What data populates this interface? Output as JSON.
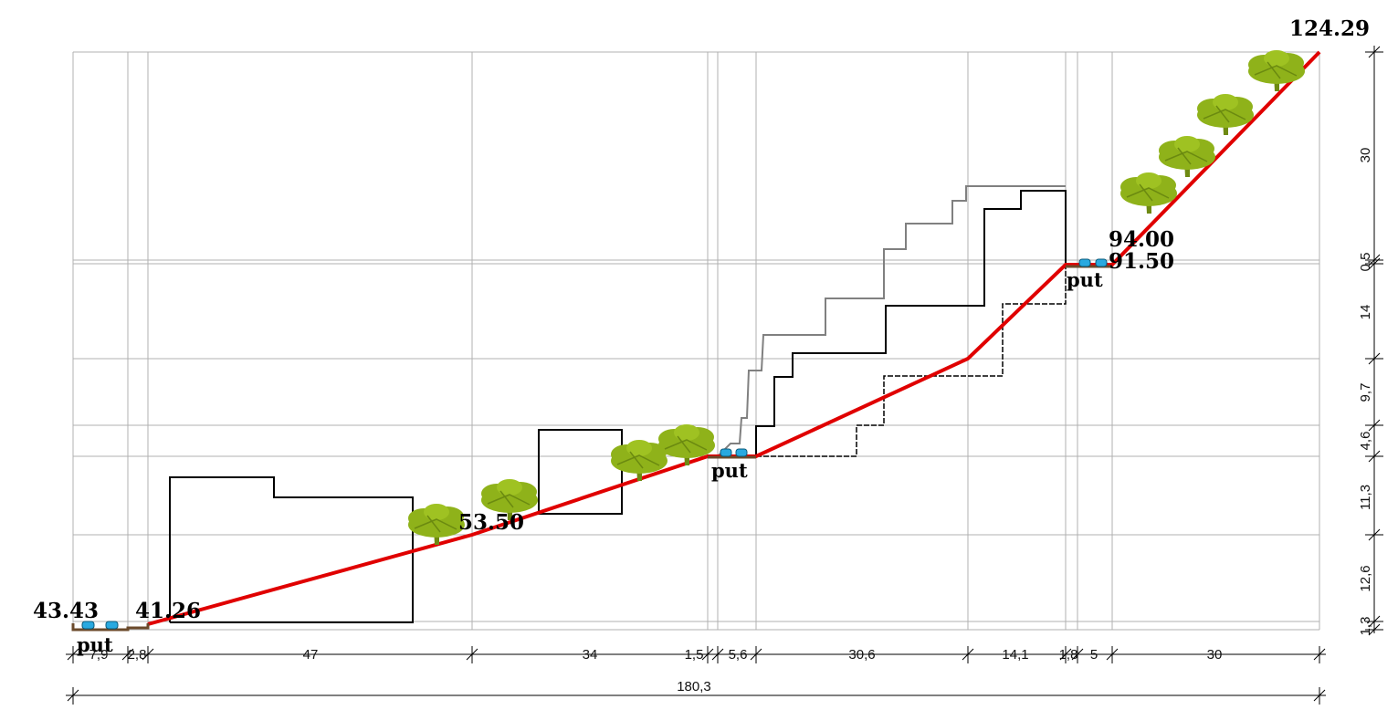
{
  "elevations": {
    "left_outer": "43.43",
    "left_inner": "41.26",
    "mid_hidden": "53.50",
    "right_upper": "94.00",
    "right_lower": "91.50",
    "top": "124.29"
  },
  "road_label": "put",
  "bottom_dimensions": [
    "7,9",
    "2,8",
    "47",
    "34",
    "1,5",
    "5,6",
    "30,6",
    "14,1",
    "1,8",
    "5",
    "30"
  ],
  "total_dimension": "180,3",
  "side_dimensions": [
    "1,3",
    "12,6",
    "11,3",
    "4,6",
    "9,7",
    "14",
    "0,5",
    "30"
  ],
  "colors": {
    "terrain_line": "#e00000",
    "building_outline": "#000000",
    "upper_outline": "#808080",
    "road": "#6b4a2b",
    "car": "#29a9e0",
    "tree": "#8fb21a",
    "grid": "#b0b0b0"
  }
}
